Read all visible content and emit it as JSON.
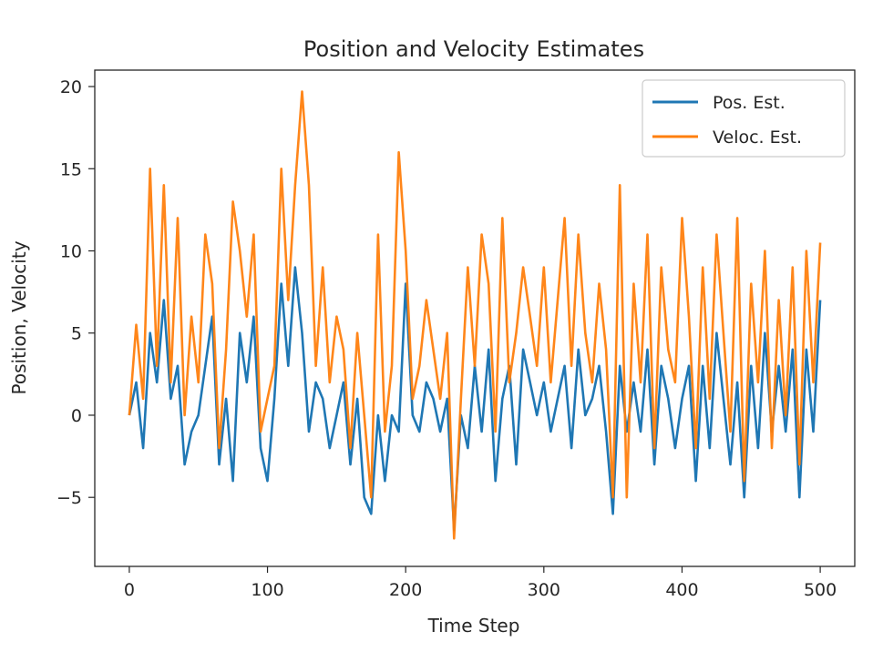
{
  "chart_data": {
    "type": "line",
    "title": "Position and Velocity Estimates",
    "xlabel": "Time Step",
    "ylabel": "Position, Velocity",
    "xlim": [
      -25,
      525
    ],
    "ylim": [
      -9.2,
      21
    ],
    "xticks": [
      0,
      100,
      200,
      300,
      400,
      500
    ],
    "xtick_labels": [
      "0",
      "100",
      "200",
      "300",
      "400",
      "500"
    ],
    "yticks": [
      -5,
      0,
      5,
      10,
      15,
      20
    ],
    "ytick_labels": [
      "−5",
      "0",
      "5",
      "10",
      "15",
      "20"
    ],
    "grid": false,
    "legend_position": "top-right",
    "series": [
      {
        "name": "Pos. Est.",
        "color": "#1f77b4",
        "x": [
          0,
          5,
          10,
          15,
          20,
          25,
          30,
          35,
          40,
          45,
          50,
          55,
          60,
          65,
          70,
          75,
          80,
          85,
          90,
          95,
          100,
          105,
          110,
          115,
          120,
          125,
          130,
          135,
          140,
          145,
          150,
          155,
          160,
          165,
          170,
          175,
          180,
          185,
          190,
          195,
          200,
          205,
          210,
          215,
          220,
          225,
          230,
          235,
          240,
          245,
          250,
          255,
          260,
          265,
          270,
          275,
          280,
          285,
          290,
          295,
          300,
          305,
          310,
          315,
          320,
          325,
          330,
          335,
          340,
          345,
          350,
          355,
          360,
          365,
          370,
          375,
          380,
          385,
          390,
          395,
          400,
          405,
          410,
          415,
          420,
          425,
          430,
          435,
          440,
          445,
          450,
          455,
          460,
          465,
          470,
          475,
          480,
          485,
          490,
          495,
          500
        ],
        "y": [
          0,
          2,
          -2,
          5,
          2,
          7,
          1,
          3,
          -3,
          -1,
          0,
          3,
          6,
          -3,
          1,
          -4,
          5,
          2,
          6,
          -2,
          -4,
          1,
          8,
          3,
          9,
          5,
          -1,
          2,
          1,
          -2,
          0,
          2,
          -3,
          1,
          -5,
          -6,
          0,
          -4,
          0,
          -1,
          8,
          0,
          -1,
          2,
          1,
          -1,
          1,
          -7,
          0,
          -2,
          3,
          -1,
          4,
          -4,
          1,
          3,
          -3,
          4,
          2,
          0,
          2,
          -1,
          1,
          3,
          -2,
          4,
          0,
          1,
          3,
          -1,
          -6,
          3,
          -1,
          2,
          -1,
          4,
          -3,
          3,
          1,
          -2,
          1,
          3,
          -4,
          3,
          -2,
          5,
          1,
          -3,
          2,
          -5,
          3,
          -2,
          5,
          -1,
          3,
          -1,
          4,
          -5,
          4,
          -1,
          7
        ]
      },
      {
        "name": "Veloc. Est.",
        "color": "#ff7f0e",
        "x": [
          0,
          5,
          10,
          15,
          20,
          25,
          30,
          35,
          40,
          45,
          50,
          55,
          60,
          65,
          70,
          75,
          80,
          85,
          90,
          95,
          100,
          105,
          110,
          115,
          120,
          125,
          130,
          135,
          140,
          145,
          150,
          155,
          160,
          165,
          170,
          175,
          180,
          185,
          190,
          195,
          200,
          205,
          210,
          215,
          220,
          225,
          230,
          235,
          240,
          245,
          250,
          255,
          260,
          265,
          270,
          275,
          280,
          285,
          290,
          295,
          300,
          305,
          310,
          315,
          320,
          325,
          330,
          335,
          340,
          345,
          350,
          355,
          360,
          365,
          370,
          375,
          380,
          385,
          390,
          395,
          400,
          405,
          410,
          415,
          420,
          425,
          430,
          435,
          440,
          445,
          450,
          455,
          460,
          465,
          470,
          475,
          480,
          485,
          490,
          495,
          500
        ],
        "y": [
          0,
          5.5,
          1,
          15,
          3,
          14,
          2,
          12,
          0,
          6,
          2,
          11,
          8,
          -2,
          4,
          13,
          10,
          6,
          11,
          -1,
          1,
          3,
          15,
          7,
          14,
          19.7,
          14,
          3,
          9,
          2,
          6,
          4,
          -2,
          5,
          0,
          -5,
          11,
          -1,
          3,
          16,
          10,
          1,
          3,
          7,
          4,
          1,
          5,
          -7.5,
          1,
          9,
          3,
          11,
          8,
          -1,
          12,
          2,
          5,
          9,
          6,
          3,
          9,
          2,
          7,
          12,
          3,
          11,
          5,
          2,
          8,
          4,
          -5,
          14,
          -5,
          8,
          2,
          11,
          -2,
          9,
          4,
          2,
          12,
          6,
          -2,
          9,
          1,
          11,
          5,
          -1,
          12,
          -4,
          8,
          2,
          10,
          -2,
          7,
          0,
          9,
          -3,
          10,
          2,
          10.5
        ]
      }
    ]
  }
}
